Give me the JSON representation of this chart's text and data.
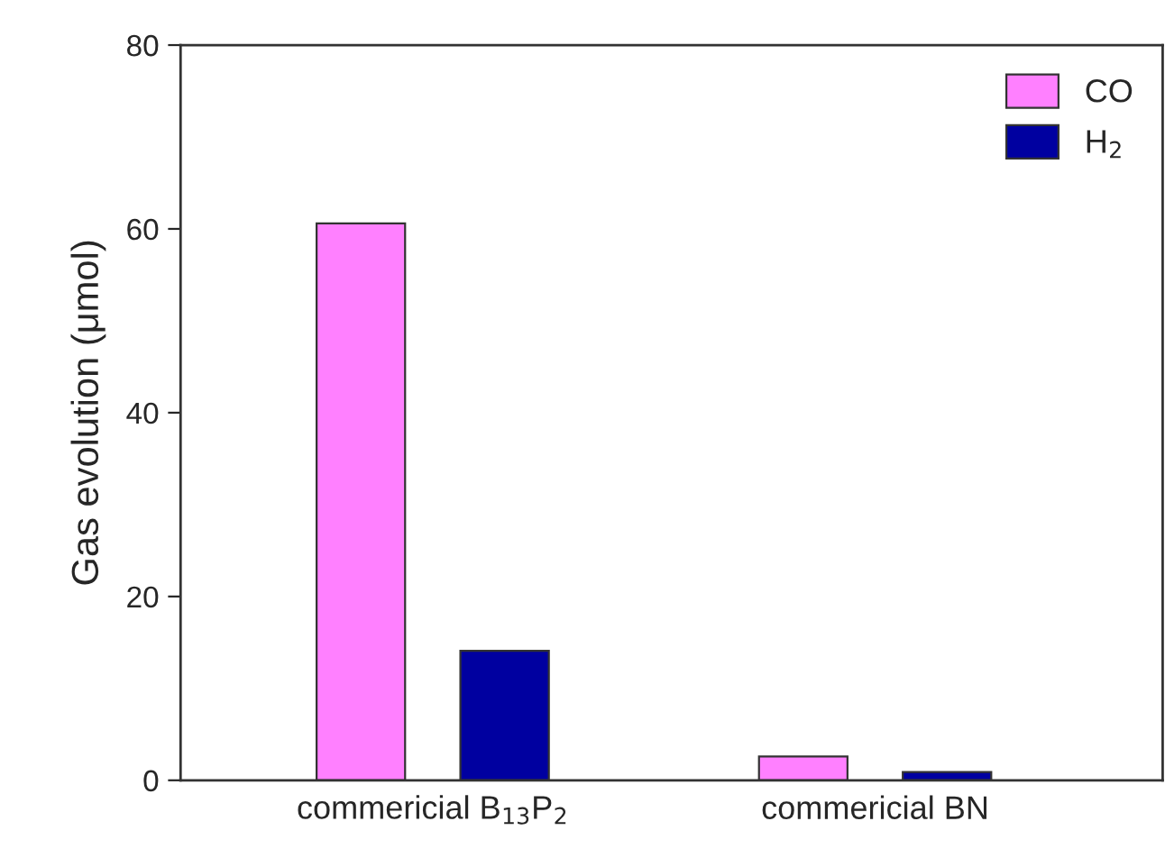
{
  "chart_data": {
    "type": "bar",
    "ylabel": "Gas evolution (μmol)",
    "categories": [
      "commericial B$_{13}$P$_{2}$",
      "commericial BN"
    ],
    "series": [
      {
        "name": "CO",
        "color": "#ff80ff",
        "values": [
          60.6,
          2.6
        ]
      },
      {
        "name": "H$_{2}$",
        "color": "#0000a0",
        "values": [
          14.1,
          0.9
        ]
      }
    ],
    "ylim": [
      0,
      80
    ],
    "yticks": [
      0,
      20,
      40,
      60,
      80
    ],
    "grid": false,
    "legend": "top right"
  }
}
